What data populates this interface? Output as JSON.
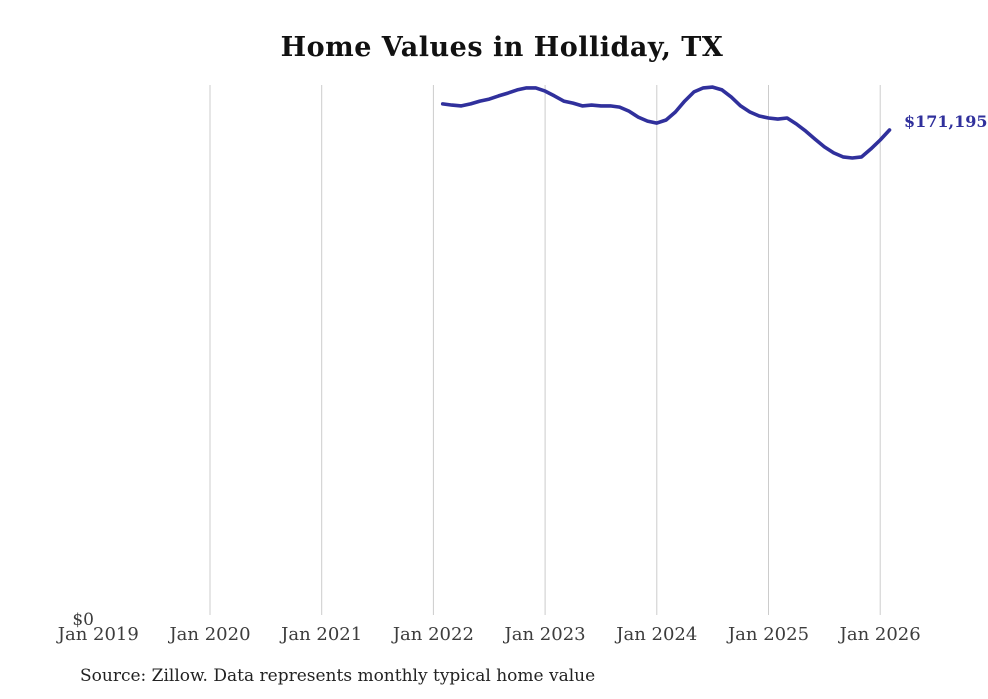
{
  "title": "Home Values in Holliday, TX",
  "source_note": "Source: Zillow. Data represents monthly typical home value",
  "latest_value_label": "$171,195",
  "y_axis": {
    "zero_label": "$0"
  },
  "x_axis": {
    "ticks": [
      {
        "label": "Jan 2019",
        "year": 2019,
        "gridline": false
      },
      {
        "label": "Jan 2020",
        "year": 2020,
        "gridline": true
      },
      {
        "label": "Jan 2021",
        "year": 2021,
        "gridline": true
      },
      {
        "label": "Jan 2022",
        "year": 2022,
        "gridline": true
      },
      {
        "label": "Jan 2023",
        "year": 2023,
        "gridline": true
      },
      {
        "label": "Jan 2024",
        "year": 2024,
        "gridline": true
      },
      {
        "label": "Jan 2025",
        "year": 2025,
        "gridline": true
      },
      {
        "label": "Jan 2026",
        "year": 2026,
        "gridline": true
      }
    ]
  },
  "colors": {
    "line": "#30309c",
    "gridline": "#cccccc",
    "title": "#111111",
    "axis_label": "#3c3c3c",
    "latest_value": "#30309c"
  },
  "chart_data": {
    "type": "line",
    "title": "Home Values in Holliday, TX",
    "xlabel": "",
    "ylabel": "",
    "ylim": [
      0,
      200000
    ],
    "x_range": [
      "2019-01",
      "2026-02"
    ],
    "grid": "vertical-yearly",
    "legend": "none",
    "series_name": "Monthly typical home value (USD)",
    "x": [
      "2022-02",
      "2022-03",
      "2022-04",
      "2022-05",
      "2022-06",
      "2022-07",
      "2022-08",
      "2022-09",
      "2022-10",
      "2022-11",
      "2022-12",
      "2023-01",
      "2023-02",
      "2023-03",
      "2023-04",
      "2023-05",
      "2023-06",
      "2023-07",
      "2023-08",
      "2023-09",
      "2023-10",
      "2023-11",
      "2023-12",
      "2024-01",
      "2024-02",
      "2024-03",
      "2024-04",
      "2024-05",
      "2024-06",
      "2024-07",
      "2024-08",
      "2024-09",
      "2024-10",
      "2024-11",
      "2024-12",
      "2025-01",
      "2025-02",
      "2025-03",
      "2025-04",
      "2025-05",
      "2025-06",
      "2025-07",
      "2025-08",
      "2025-09",
      "2025-10",
      "2025-11",
      "2025-12",
      "2026-01",
      "2026-02"
    ],
    "values": [
      180300,
      179900,
      179600,
      180300,
      181300,
      182000,
      183100,
      184100,
      185200,
      185900,
      185900,
      184800,
      183100,
      181300,
      180600,
      179600,
      179900,
      179600,
      179600,
      179200,
      177800,
      175700,
      174300,
      173600,
      174700,
      177500,
      181300,
      184500,
      185900,
      186200,
      185200,
      182700,
      179600,
      177500,
      176100,
      175400,
      175000,
      175400,
      173300,
      170800,
      168000,
      165300,
      163200,
      161800,
      161400,
      161800,
      164600,
      167700,
      171195
    ],
    "last_point_label": "$171,195"
  }
}
